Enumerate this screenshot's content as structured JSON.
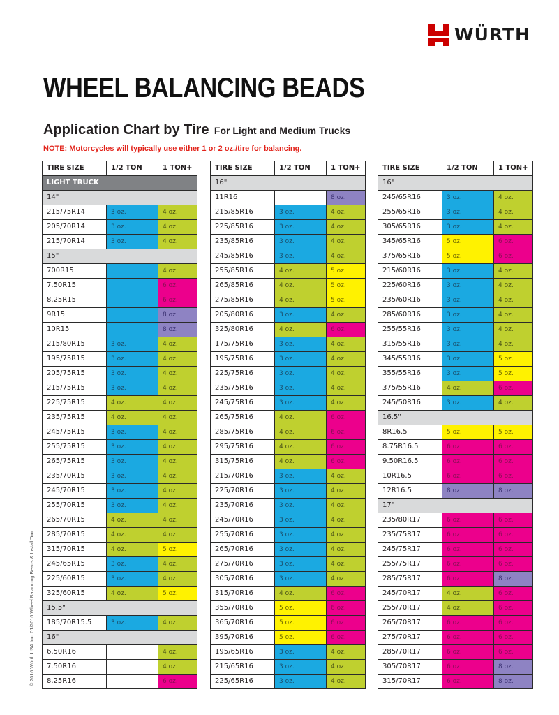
{
  "brand": {
    "name": "WÜRTH",
    "logo_color": "#cc0000"
  },
  "title": "WHEEL BALANCING BEADS",
  "subtitle": {
    "main": "Application Chart by Tire",
    "sub": "For Light and Medium Trucks"
  },
  "note": "NOTE: Motorcycles will typically use either 1 or 2 oz./tire for balancing.",
  "side_text": "© 2016 Würth USA Inc.     01/2016  Wheel Balancing Beads & Install Tool",
  "headers": [
    "TIRE SIZE",
    "1/2 TON",
    "1 TON+"
  ],
  "colors": {
    "blue": "#1ba9e1",
    "green": "#bfd02f",
    "pink": "#ec008c",
    "yellow": "#fff200",
    "purple": "#8e83c3",
    "group": "#d9dadb",
    "category": "#808285"
  },
  "tables": [
    {
      "rows": [
        {
          "category": "LIGHT TRUCK"
        },
        {
          "group": "14\""
        },
        {
          "size": "215/75R14",
          "half": "3 oz.",
          "one": "4 oz."
        },
        {
          "size": "205/70R14",
          "half": "3 oz.",
          "one": "4 oz."
        },
        {
          "size": "215/70R14",
          "half": "3 oz.",
          "one": "4 oz."
        },
        {
          "group": "15\""
        },
        {
          "size": "700R15",
          "half": "",
          "half_color": "blue",
          "one": "4 oz."
        },
        {
          "size": "7.50R15",
          "half": "",
          "half_color": "blue",
          "one": "6 oz."
        },
        {
          "size": "8.25R15",
          "half": "",
          "half_color": "blue",
          "one": "6 oz."
        },
        {
          "size": "9R15",
          "half": "",
          "half_color": "blue",
          "one": "8 oz."
        },
        {
          "size": "10R15",
          "half": "",
          "half_color": "blue",
          "one": "8 oz."
        },
        {
          "size": "215/80R15",
          "half": "3 oz.",
          "one": "4 oz."
        },
        {
          "size": "195/75R15",
          "half": "3 oz.",
          "one": "4 oz."
        },
        {
          "size": "205/75R15",
          "half": "3 oz.",
          "one": "4 oz."
        },
        {
          "size": "215/75R15",
          "half": "3 oz.",
          "one": "4 oz."
        },
        {
          "size": "225/75R15",
          "half": "4 oz.",
          "one": "4 oz."
        },
        {
          "size": "235/75R15",
          "half": "4 oz.",
          "one": "4 oz."
        },
        {
          "size": "245/75R15",
          "half": "3 oz.",
          "one": "4 oz."
        },
        {
          "size": "255/75R15",
          "half": "3 oz.",
          "one": "4 oz."
        },
        {
          "size": "265/75R15",
          "half": "3 oz.",
          "one": "4 oz."
        },
        {
          "size": "235/70R15",
          "half": "3 oz.",
          "one": "4 oz."
        },
        {
          "size": "245/70R15",
          "half": "3 oz.",
          "one": "4 oz."
        },
        {
          "size": "255/70R15",
          "half": "3 oz.",
          "one": "4 oz."
        },
        {
          "size": "265/70R15",
          "half": "4 oz.",
          "one": "4 oz."
        },
        {
          "size": "285/70R15",
          "half": "4 oz.",
          "one": "4 oz."
        },
        {
          "size": "315/70R15",
          "half": "4 oz.",
          "one": "5 oz."
        },
        {
          "size": "245/65R15",
          "half": "3 oz.",
          "one": "4 oz."
        },
        {
          "size": "225/60R15",
          "half": "3 oz.",
          "one": "4 oz."
        },
        {
          "size": "325/60R15",
          "half": "4 oz.",
          "one": "5 oz."
        },
        {
          "group": "15.5\""
        },
        {
          "size": "185/70R15.5",
          "half": "3 oz.",
          "one": "4 oz."
        },
        {
          "group": "16\""
        },
        {
          "size": "6.50R16",
          "half": "",
          "one": "4 oz."
        },
        {
          "size": "7.50R16",
          "half": "",
          "one": "4 oz."
        },
        {
          "size": "8.25R16",
          "half": "",
          "one": "6 oz."
        }
      ]
    },
    {
      "rows": [
        {
          "group": "16\""
        },
        {
          "size": "11R16",
          "half": "",
          "one": "8 oz."
        },
        {
          "size": "215/85R16",
          "half": "3 oz.",
          "one": "4 oz."
        },
        {
          "size": "225/85R16",
          "half": "3 oz.",
          "one": "4 oz."
        },
        {
          "size": "235/85R16",
          "half": "3 oz.",
          "one": "4 oz."
        },
        {
          "size": "245/85R16",
          "half": "3 oz.",
          "one": "4 oz."
        },
        {
          "size": "255/85R16",
          "half": "4 oz.",
          "one": "5 oz."
        },
        {
          "size": "265/85R16",
          "half": "4 oz.",
          "one": "5 oz."
        },
        {
          "size": "275/85R16",
          "half": "4 oz.",
          "one": "5 oz."
        },
        {
          "size": "205/80R16",
          "half": "3 oz.",
          "one": "4 oz."
        },
        {
          "size": "325/80R16",
          "half": "4 oz.",
          "one": "6 oz."
        },
        {
          "size": "175/75R16",
          "half": "3 oz.",
          "one": "4 oz."
        },
        {
          "size": "195/75R16",
          "half": "3 oz.",
          "one": "4 oz."
        },
        {
          "size": "225/75R16",
          "half": "3 oz.",
          "one": "4 oz."
        },
        {
          "size": "235/75R16",
          "half": "3 oz.",
          "one": "4 oz."
        },
        {
          "size": "245/75R16",
          "half": "3 oz.",
          "one": "4 oz."
        },
        {
          "size": "265/75R16",
          "half": "4 oz.",
          "one": "6 oz."
        },
        {
          "size": "285/75R16",
          "half": "4 oz.",
          "one": "6 oz."
        },
        {
          "size": "295/75R16",
          "half": "4 oz.",
          "one": "6 oz."
        },
        {
          "size": "315/75R16",
          "half": "4 oz.",
          "one": "6 oz."
        },
        {
          "size": "215/70R16",
          "half": "3 oz.",
          "one": "4 oz."
        },
        {
          "size": "225/70R16",
          "half": "3 oz.",
          "one": "4 oz."
        },
        {
          "size": "235/70R16",
          "half": "3 oz.",
          "one": "4 oz."
        },
        {
          "size": "245/70R16",
          "half": "3 oz.",
          "one": "4 oz."
        },
        {
          "size": "255/70R16",
          "half": "3 oz.",
          "one": "4 oz."
        },
        {
          "size": "265/70R16",
          "half": "3 oz.",
          "one": "4 oz."
        },
        {
          "size": "275/70R16",
          "half": "3 oz.",
          "one": "4 oz."
        },
        {
          "size": "305/70R16",
          "half": "3 oz.",
          "one": "4 oz."
        },
        {
          "size": "315/70R16",
          "half": "4 oz.",
          "one": "6 oz."
        },
        {
          "size": "355/70R16",
          "half": "5 oz.",
          "one": "6 oz."
        },
        {
          "size": "365/70R16",
          "half": "5 oz.",
          "one": "6 oz."
        },
        {
          "size": "395/70R16",
          "half": "5 oz.",
          "one": "6 oz."
        },
        {
          "size": "195/65R16",
          "half": "3 oz.",
          "one": "4 oz."
        },
        {
          "size": "215/65R16",
          "half": "3 oz.",
          "one": "4 oz."
        },
        {
          "size": "225/65R16",
          "half": "3 oz.",
          "one": "4 oz."
        }
      ]
    },
    {
      "rows": [
        {
          "group": "16\""
        },
        {
          "size": "245/65R16",
          "half": "3 oz.",
          "one": "4 oz."
        },
        {
          "size": "255/65R16",
          "half": "3 oz.",
          "one": "4 oz."
        },
        {
          "size": "305/65R16",
          "half": "3 oz.",
          "one": "4 oz."
        },
        {
          "size": "345/65R16",
          "half": "5 oz.",
          "one": "6 oz."
        },
        {
          "size": "375/65R16",
          "half": "5 oz.",
          "one": "6 oz."
        },
        {
          "size": "215/60R16",
          "half": "3 oz.",
          "one": "4 oz."
        },
        {
          "size": "225/60R16",
          "half": "3 oz.",
          "one": "4 oz."
        },
        {
          "size": "235/60R16",
          "half": "3 oz.",
          "one": "4 oz."
        },
        {
          "size": "285/60R16",
          "half": "3 oz.",
          "one": "4 oz."
        },
        {
          "size": "255/55R16",
          "half": "3 oz.",
          "one": "4 oz."
        },
        {
          "size": "315/55R16",
          "half": "3 oz.",
          "one": "4 oz."
        },
        {
          "size": "345/55R16",
          "half": "3 oz.",
          "one": "5 oz."
        },
        {
          "size": "355/55R16",
          "half": "3 oz.",
          "one": "5 oz."
        },
        {
          "size": "375/55R16",
          "half": "4 oz.",
          "one": "6 oz."
        },
        {
          "size": "245/50R16",
          "half": "3 oz.",
          "one": "4 oz."
        },
        {
          "group": "16.5\""
        },
        {
          "size": "8R16.5",
          "half": "5 oz.",
          "one": "5 oz."
        },
        {
          "size": "8.75R16.5",
          "half": "6 oz.",
          "one": "6 oz."
        },
        {
          "size": "9.50R16.5",
          "half": "6 oz.",
          "one": "6 oz."
        },
        {
          "size": "10R16.5",
          "half": "6 oz.",
          "one": "6 oz."
        },
        {
          "size": "12R16.5",
          "half": "8 oz.",
          "one": "8 oz."
        },
        {
          "group": "17\""
        },
        {
          "size": "235/80R17",
          "half": "6 oz.",
          "one": "6 oz."
        },
        {
          "size": "235/75R17",
          "half": "6 oz.",
          "one": "6 oz."
        },
        {
          "size": "245/75R17",
          "half": "6 oz.",
          "one": "6 oz."
        },
        {
          "size": "255/75R17",
          "half": "6 oz.",
          "one": "6 oz."
        },
        {
          "size": "285/75R17",
          "half": "6 oz.",
          "one": "8 oz."
        },
        {
          "size": "245/70R17",
          "half": "4 oz.",
          "one": "6 oz."
        },
        {
          "size": "255/70R17",
          "half": "4 oz.",
          "one": "6 oz."
        },
        {
          "size": "265/70R17",
          "half": "6 oz.",
          "one": "6 oz."
        },
        {
          "size": "275/70R17",
          "half": "6 oz.",
          "one": "6 oz."
        },
        {
          "size": "285/70R17",
          "half": "6 oz.",
          "one": "6 oz."
        },
        {
          "size": "305/70R17",
          "half": "6 oz.",
          "one": "8 oz."
        },
        {
          "size": "315/70R17",
          "half": "6 oz.",
          "one": "8 oz."
        }
      ]
    }
  ]
}
